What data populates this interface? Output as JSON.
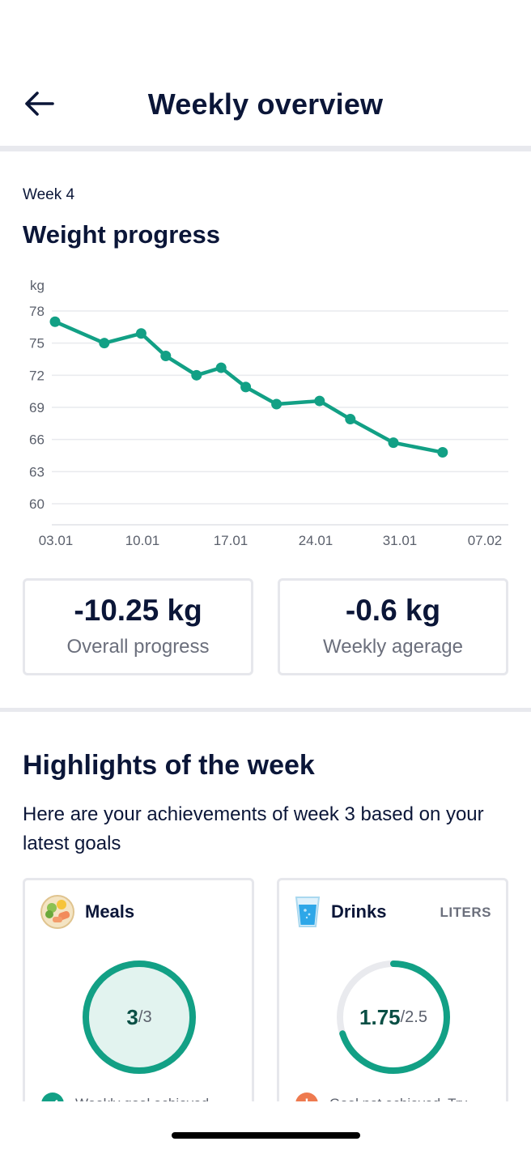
{
  "header": {
    "title": "Weekly overview"
  },
  "week": {
    "label": "Week 4"
  },
  "weight": {
    "title": "Weight progress",
    "overall": {
      "value": "-10.25 kg",
      "label": "Overall progress"
    },
    "weekly": {
      "value": "-0.6 kg",
      "label": "Weekly agerage"
    }
  },
  "chart_data": {
    "type": "line",
    "title": "Weight progress",
    "ylabel": "kg",
    "xlabel": "",
    "y_ticks": [
      78,
      75,
      72,
      69,
      66,
      63,
      60
    ],
    "x_ticks": [
      "03.01",
      "10.01",
      "17.01",
      "24.01",
      "31.01",
      "07.02"
    ],
    "ylim": [
      59,
      79
    ],
    "x_range_days": [
      0,
      35
    ],
    "series": [
      {
        "name": "Weight",
        "color": "#12a085",
        "x_days": [
          0,
          4,
          7,
          9,
          11.5,
          13.5,
          15.5,
          18,
          21.5,
          24,
          27.5,
          31.5
        ],
        "values": [
          77.0,
          75.0,
          75.9,
          73.8,
          72.0,
          72.7,
          70.9,
          69.3,
          69.6,
          67.9,
          65.7,
          64.8
        ]
      }
    ]
  },
  "highlights": {
    "title": "Highlights of the week",
    "subtitle": "Here are your achievements of week 3 based on your latest goals",
    "meals": {
      "name": "Meals",
      "value": "3",
      "total": "/3",
      "progress": 1.0,
      "status": "Weekly goal achieved",
      "status_icon": "check"
    },
    "drinks": {
      "name": "Drinks",
      "unit": "LITERS",
      "value": "1.75",
      "total": "/2.5",
      "progress": 0.7,
      "status": "Goal not achieved. Try",
      "status_icon": "!"
    }
  },
  "colors": {
    "accent": "#12a085",
    "dark": "#0b1638",
    "warning": "#ee7a4f",
    "ring_fill": "#e2f3ef",
    "track": "#e9eaee"
  }
}
